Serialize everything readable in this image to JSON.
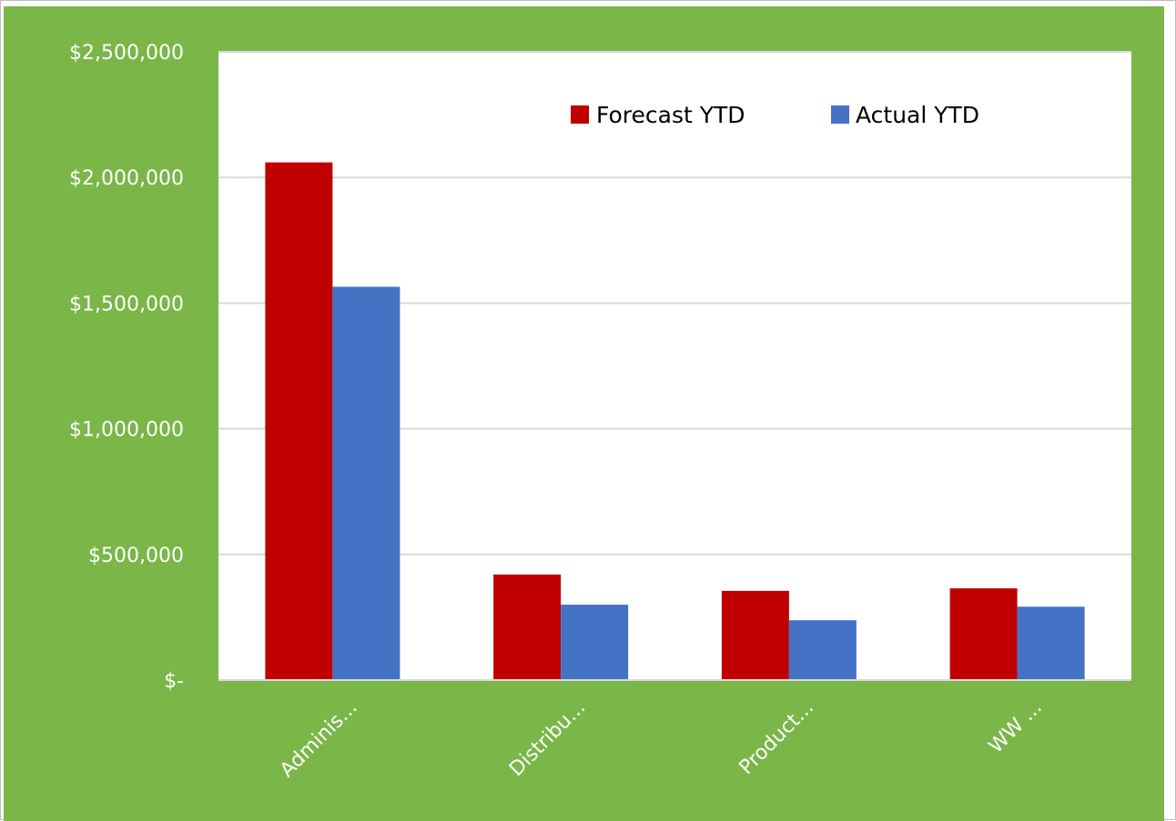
{
  "chart_data": {
    "type": "bar",
    "title": "",
    "xlabel": "",
    "ylabel": "",
    "categories": [
      "Adminis...",
      "Distribu...",
      "Product...",
      "WW ..."
    ],
    "series": [
      {
        "name": "Forecast YTD",
        "color": "#C00000",
        "values": [
          2060000,
          420000,
          355000,
          365000
        ]
      },
      {
        "name": "Actual YTD",
        "color": "#4472C4",
        "values": [
          1565000,
          300000,
          238000,
          292000
        ]
      }
    ],
    "y_ticks": [
      {
        "value": 2500000,
        "label": "$2,500,000"
      },
      {
        "value": 2000000,
        "label": "$2,000,000"
      },
      {
        "value": 1500000,
        "label": "$1,500,000"
      },
      {
        "value": 1000000,
        "label": "$1,000,000"
      },
      {
        "value": 500000,
        "label": "$500,000"
      },
      {
        "value": 0,
        "label": "$-"
      }
    ],
    "ylim": [
      0,
      2500000
    ],
    "grid": true,
    "legend": "top-right",
    "background_color": "#7AB648",
    "plot_area_color": "#FFFFFF",
    "gridline_color": "#D9D9D9"
  }
}
